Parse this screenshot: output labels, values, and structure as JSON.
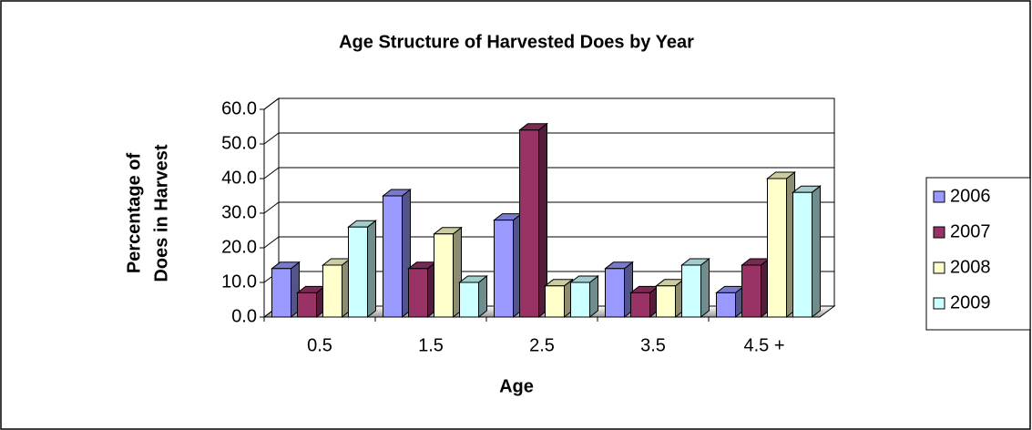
{
  "chart_data": {
    "type": "bar3d",
    "title": "Age Structure of Harvested Does by Year",
    "xlabel": "Age",
    "ylabel": [
      "Percentage of",
      "Does in Harvest"
    ],
    "categories": [
      "0.5",
      "1.5",
      "2.5",
      "3.5",
      "4.5 +"
    ],
    "series": [
      {
        "name": "2006",
        "color": "#9999ff",
        "values": [
          14,
          35,
          28,
          14,
          7
        ]
      },
      {
        "name": "2007",
        "color": "#993366",
        "values": [
          7,
          14,
          54,
          7,
          15
        ]
      },
      {
        "name": "2008",
        "color": "#ffffcc",
        "values": [
          15,
          24,
          9,
          9,
          40
        ]
      },
      {
        "name": "2009",
        "color": "#ccffff",
        "values": [
          26,
          10,
          10,
          15,
          36
        ]
      }
    ],
    "ylim": [
      0,
      60
    ],
    "yticks": [
      {
        "value": 0,
        "label": "0.0"
      },
      {
        "value": 10,
        "label": "10.0"
      },
      {
        "value": 20,
        "label": "20.0"
      },
      {
        "value": 30,
        "label": "30.0"
      },
      {
        "value": 40,
        "label": "40.0"
      },
      {
        "value": 50,
        "label": "50.0"
      },
      {
        "value": 60,
        "label": "60.0"
      }
    ],
    "grid": true,
    "legend": "right"
  }
}
